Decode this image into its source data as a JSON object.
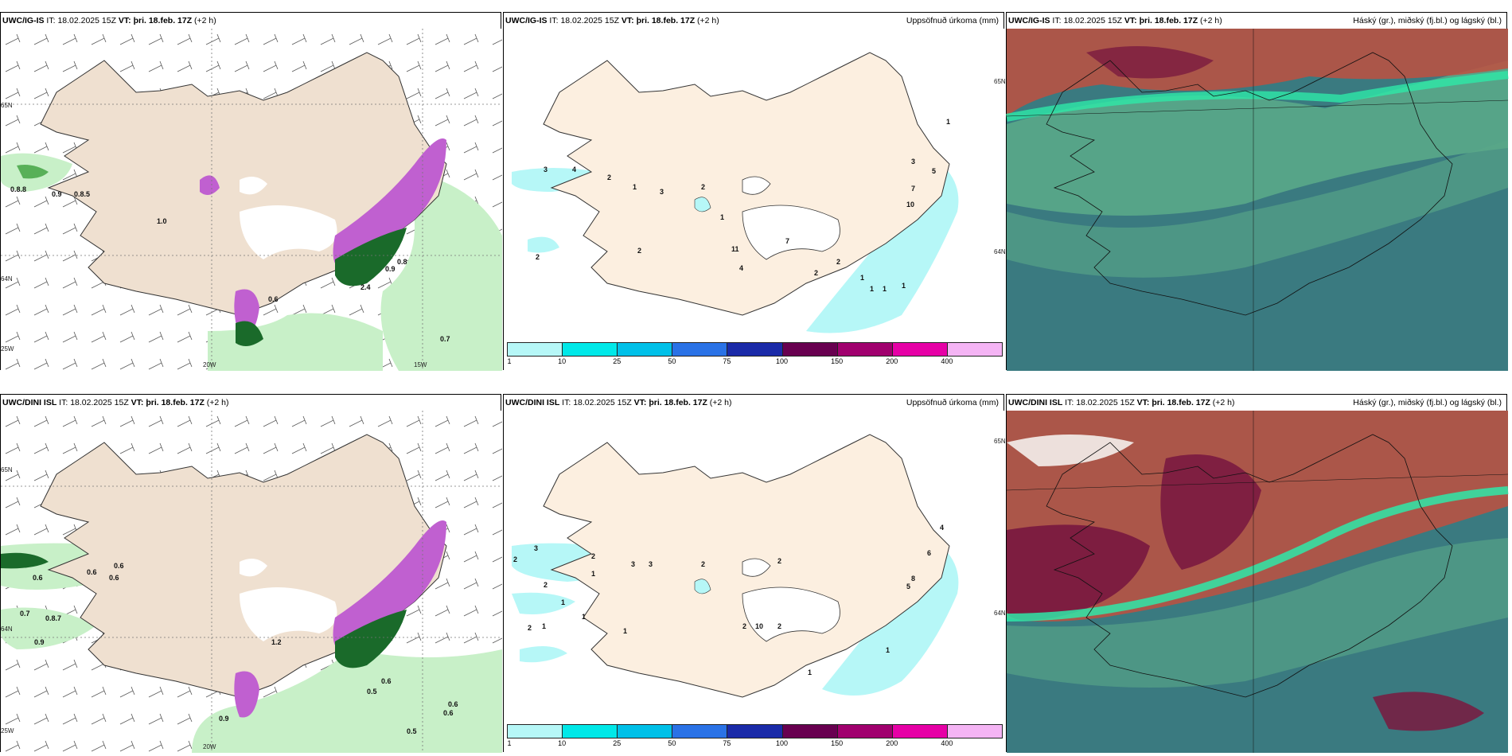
{
  "rows": [
    {
      "model": "UWC/IG-IS",
      "panels": [
        {
          "type": "wind-precip",
          "model": "UWC/IG-IS",
          "it_label": "IT:",
          "it": "18.02.2025 15Z",
          "vt_label": "VT:",
          "vt": "þri. 18.feb. 17Z",
          "lead": "(+2 h)",
          "title_right": "",
          "values": [
            "0.8.8",
            "0.9",
            "0.8.5",
            "1.0",
            "0.6",
            "0.9",
            "0.8",
            "2.4",
            "0.7"
          ],
          "lat_labels": [
            "65N",
            "64N",
            "25W"
          ],
          "lon_labels": [
            "20W",
            "15W"
          ]
        },
        {
          "type": "accum",
          "model": "UWC/IG-IS",
          "it_label": "IT:",
          "it": "18.02.2025 15Z",
          "vt_label": "VT:",
          "vt": "þri. 18.feb. 17Z",
          "lead": "(+2 h)",
          "title_right": "Uppsöfnuð úrkoma (mm)",
          "values": [
            "3",
            "4",
            "2",
            "1",
            "3",
            "2",
            "1",
            "2",
            "11",
            "7",
            "2",
            "2",
            "2",
            "3",
            "7",
            "5",
            "10",
            "1",
            "1",
            "1",
            "4",
            "1",
            "1"
          ],
          "lat_labels": [
            "65N",
            "64N"
          ]
        },
        {
          "type": "clouds",
          "model": "UWC/IG-IS",
          "it_label": "IT:",
          "it": "18.02.2025 15Z",
          "vt_label": "VT:",
          "vt": "þri. 18.feb. 17Z",
          "lead": "(+2 h)",
          "title_right": "Háský (gr.), miðský (fj.bl.) og lágský (bl.)"
        }
      ]
    },
    {
      "model": "UWC/DINI ISL",
      "panels": [
        {
          "type": "wind-precip",
          "model": "UWC/DINI ISL",
          "it_label": "IT:",
          "it": "18.02.2025 15Z",
          "vt_label": "VT:",
          "vt": "þri. 18.feb. 17Z",
          "lead": "(+2 h)",
          "title_right": "",
          "values": [
            "0.6",
            "0.6",
            "0.6",
            "0.6",
            "0.7",
            "0.8.7",
            "0.9",
            "1.2",
            "0.5",
            "0.6",
            "0.9",
            "0.6",
            "0.6",
            "0.5"
          ],
          "lat_labels": [
            "65N",
            "64N",
            "25W"
          ],
          "lon_labels": [
            "20W"
          ]
        },
        {
          "type": "accum",
          "model": "UWC/DINI ISL",
          "it_label": "IT:",
          "it": "18.02.2025 15Z",
          "vt_label": "VT:",
          "vt": "þri. 18.feb. 17Z",
          "lead": "(+2 h)",
          "title_right": "Uppsöfnuð úrkoma (mm)",
          "values": [
            "3",
            "2",
            "2",
            "2",
            "3",
            "3",
            "1",
            "2",
            "1",
            "1",
            "2",
            "1",
            "2",
            "10",
            "2",
            "2",
            "1",
            "1",
            "1",
            "4",
            "6",
            "8",
            "5"
          ],
          "lat_labels": [
            "65N",
            "64N"
          ]
        },
        {
          "type": "clouds",
          "model": "UWC/DINI ISL",
          "it_label": "IT:",
          "it": "18.02.2025 15Z",
          "vt_label": "VT:",
          "vt": "þri. 18.feb. 17Z",
          "lead": "(+2 h)",
          "title_right": "Háský (gr.), miðský (fj.bl.) og lágský (bl.)"
        }
      ]
    }
  ],
  "colorbar": {
    "labels": [
      "1",
      "10",
      "25",
      "50",
      "75",
      "100",
      "150",
      "200",
      "400"
    ],
    "colors": [
      "#b6f7f7",
      "#00e8e8",
      "#00c0e8",
      "#2a72e6",
      "#1a2aa8",
      "#680050",
      "#a0006e",
      "#e600a6",
      "#f4b4f4"
    ]
  },
  "colors": {
    "land": "#efe0d0",
    "land_accum": "#fcefe0",
    "precip_light": "#c8f0c8",
    "precip_mid": "#58b058",
    "precip_dark": "#1a6a2a",
    "precip_violet": "#c060d0",
    "accum_cyan": "#b6f7f7",
    "cloud_teal": "#3a7a80",
    "cloud_green": "#5aa888",
    "cloud_red": "#c05040",
    "cloud_maroon": "#7a1a40"
  }
}
